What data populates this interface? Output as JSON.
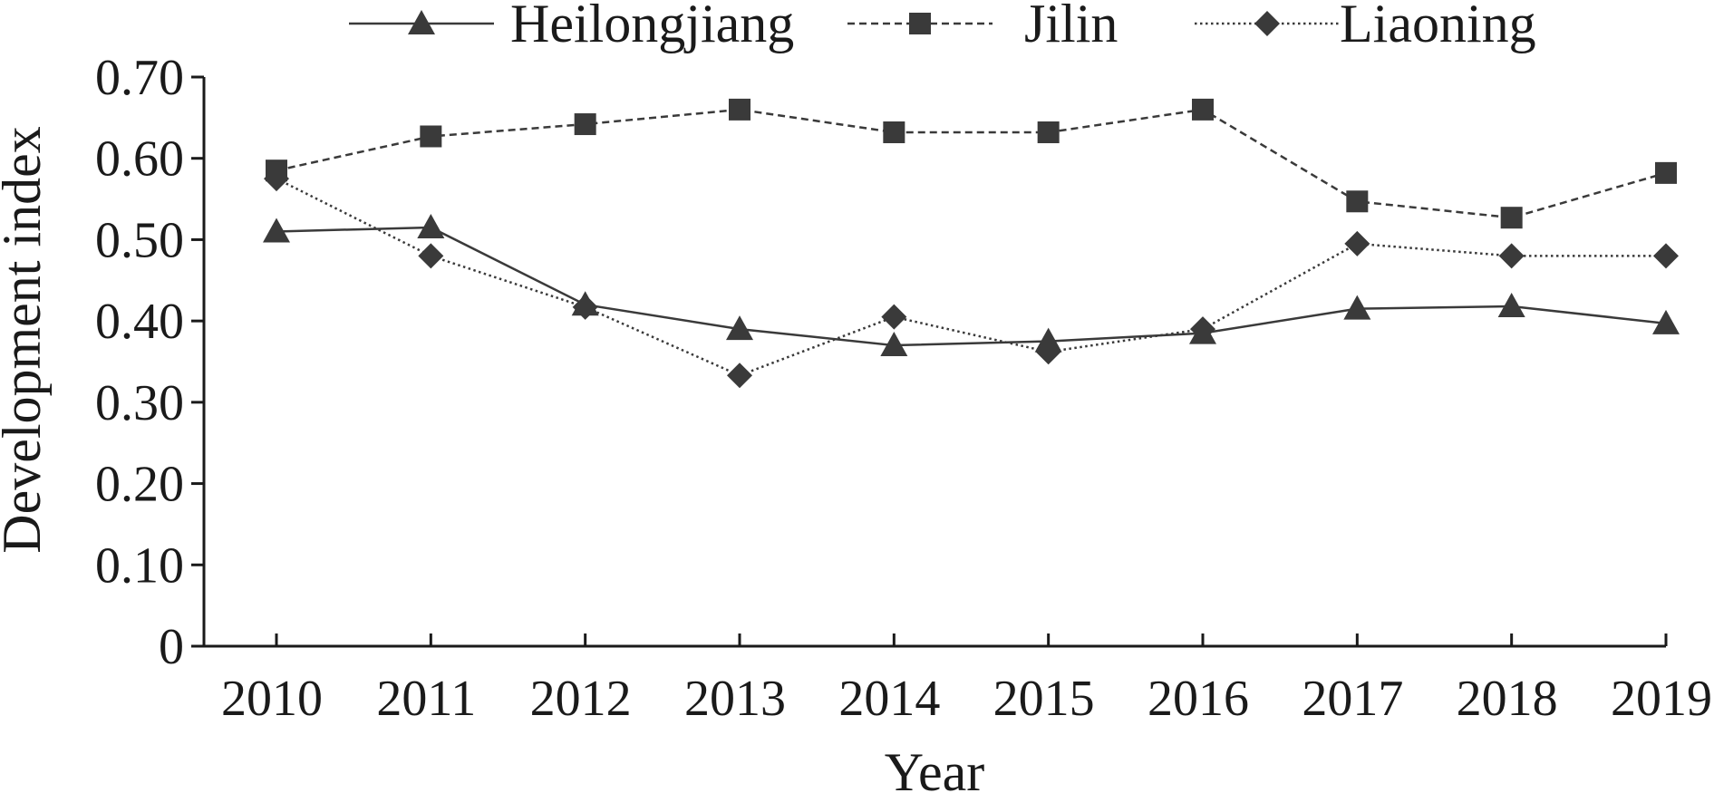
{
  "chart_data": {
    "type": "line",
    "title": "",
    "xlabel": "Year",
    "ylabel": "Development index",
    "categories": [
      "2010",
      "2011",
      "2012",
      "2013",
      "2014",
      "2015",
      "2016",
      "2017",
      "2018",
      "2019"
    ],
    "yticks": [
      "0",
      "0.10",
      "0.20",
      "0.30",
      "0.40",
      "0.50",
      "0.60",
      "0.70"
    ],
    "ylim": [
      0,
      0.7
    ],
    "grid": false,
    "legend_position": "top",
    "series": [
      {
        "name": "Heilongjiang",
        "marker": "triangle",
        "line_style": "solid",
        "values": [
          0.51,
          0.515,
          0.42,
          0.39,
          0.37,
          0.375,
          0.385,
          0.415,
          0.418,
          0.397
        ]
      },
      {
        "name": "Jilin",
        "marker": "square",
        "line_style": "dashed",
        "values": [
          0.585,
          0.627,
          0.642,
          0.66,
          0.632,
          0.632,
          0.66,
          0.547,
          0.527,
          0.582
        ]
      },
      {
        "name": "Liaoning",
        "marker": "diamond",
        "line_style": "dotted",
        "values": [
          0.575,
          0.48,
          0.417,
          0.333,
          0.405,
          0.362,
          0.39,
          0.495,
          0.48,
          0.48
        ]
      }
    ],
    "colors": {
      "line": "#3a3a3a",
      "marker": "#3a3a3a",
      "text": "#1a1a1a"
    }
  }
}
